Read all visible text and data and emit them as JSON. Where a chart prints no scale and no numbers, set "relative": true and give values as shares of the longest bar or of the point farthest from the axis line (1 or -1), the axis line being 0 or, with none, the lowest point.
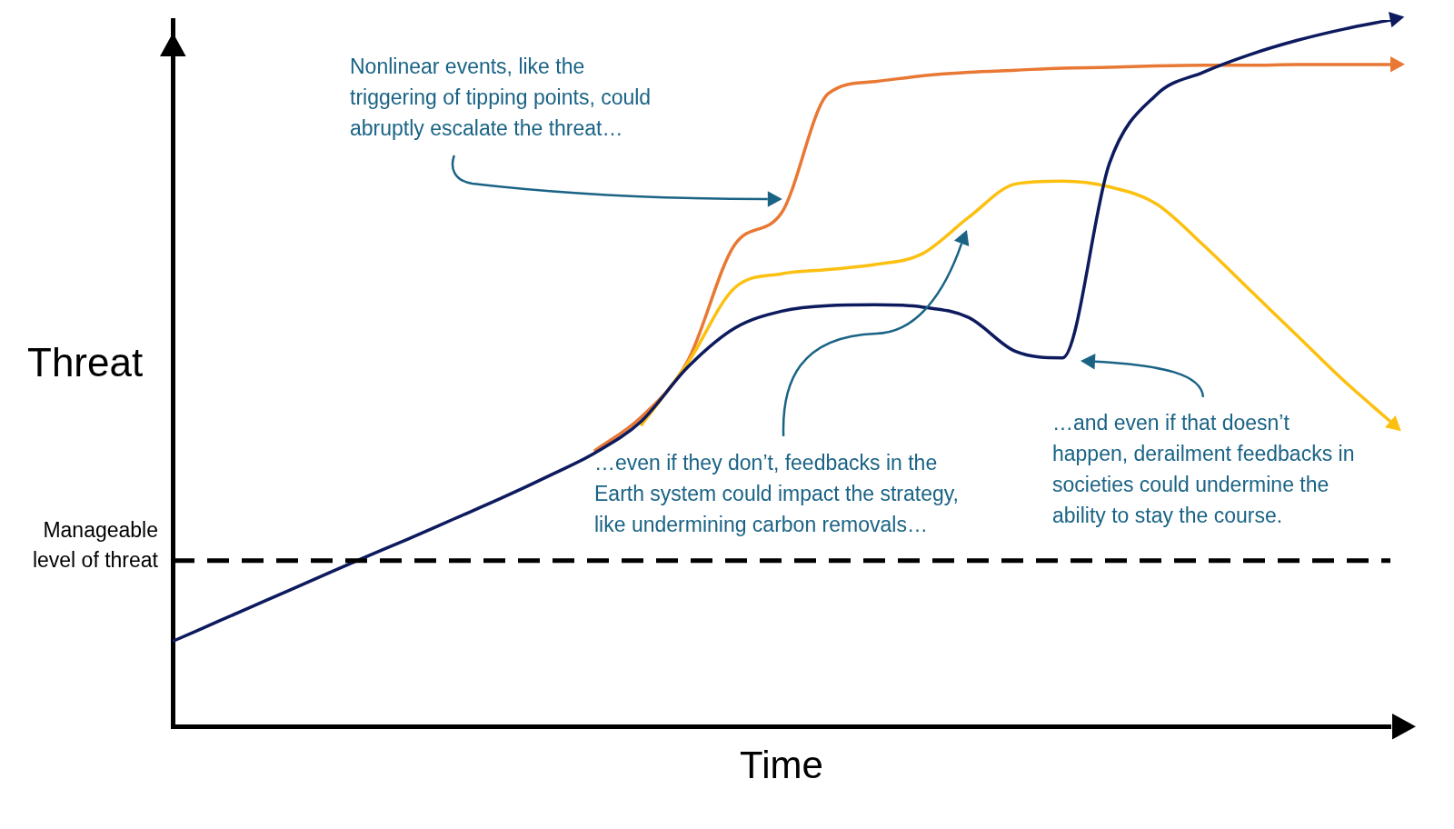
{
  "chart_data": {
    "type": "line",
    "relative": true,
    "xlabel": "Time",
    "ylabel": "Threat",
    "legend": false,
    "grid": false,
    "marker": "none",
    "categories": [
      null,
      null,
      null,
      null,
      null,
      null,
      null,
      null,
      null,
      null,
      null,
      null,
      null,
      null,
      null,
      null,
      null,
      null,
      null,
      null,
      null,
      null,
      null,
      null,
      null,
      null,
      null
    ],
    "series": [
      {
        "color": "#e87833",
        "values": [
          null,
          null,
          null,
          null,
          null,
          null,
          null,
          null,
          null,
          0.39,
          0.438,
          0.518,
          0.682,
          0.727,
          0.896,
          0.913,
          0.921,
          0.926,
          0.929,
          0.932,
          0.933,
          0.935,
          0.936,
          0.936,
          0.937,
          0.937,
          0.937
        ]
      },
      {
        "color": "#fcc010",
        "values": [
          null,
          null,
          null,
          null,
          null,
          null,
          null,
          null,
          null,
          null,
          0.426,
          0.515,
          0.621,
          0.641,
          0.647,
          0.654,
          0.669,
          0.721,
          0.768,
          0.772,
          0.764,
          0.74,
          0.682,
          0.618,
          0.554,
          0.49,
          0.432
        ]
      },
      {
        "color": "#0d1b5e",
        "values": [
          0.121,
          0.15,
          0.179,
          0.208,
          0.237,
          0.265,
          0.294,
          0.323,
          0.354,
          0.387,
          0.432,
          0.509,
          0.564,
          0.588,
          0.596,
          0.597,
          0.594,
          0.579,
          0.531,
          0.522,
          0.797,
          0.894,
          0.926,
          0.951,
          0.971,
          0.987,
          1.0
        ]
      }
    ],
    "ref_lines": [
      {
        "axis": "y",
        "value": 0.235,
        "label": "Manageable level of threat",
        "line_style": "dashed",
        "color": "#000000"
      }
    ],
    "annotations": [
      "Nonlinear events, like the triggering of tipping points, could abruptly escalate the threat…",
      "…even if they don’t, feedbacks in the Earth system could impact the strategy, like undermining carbon removals…",
      "…and even if that doesn’t happen, derailment feedbacks in societies could undermine the ability to stay the course."
    ]
  }
}
